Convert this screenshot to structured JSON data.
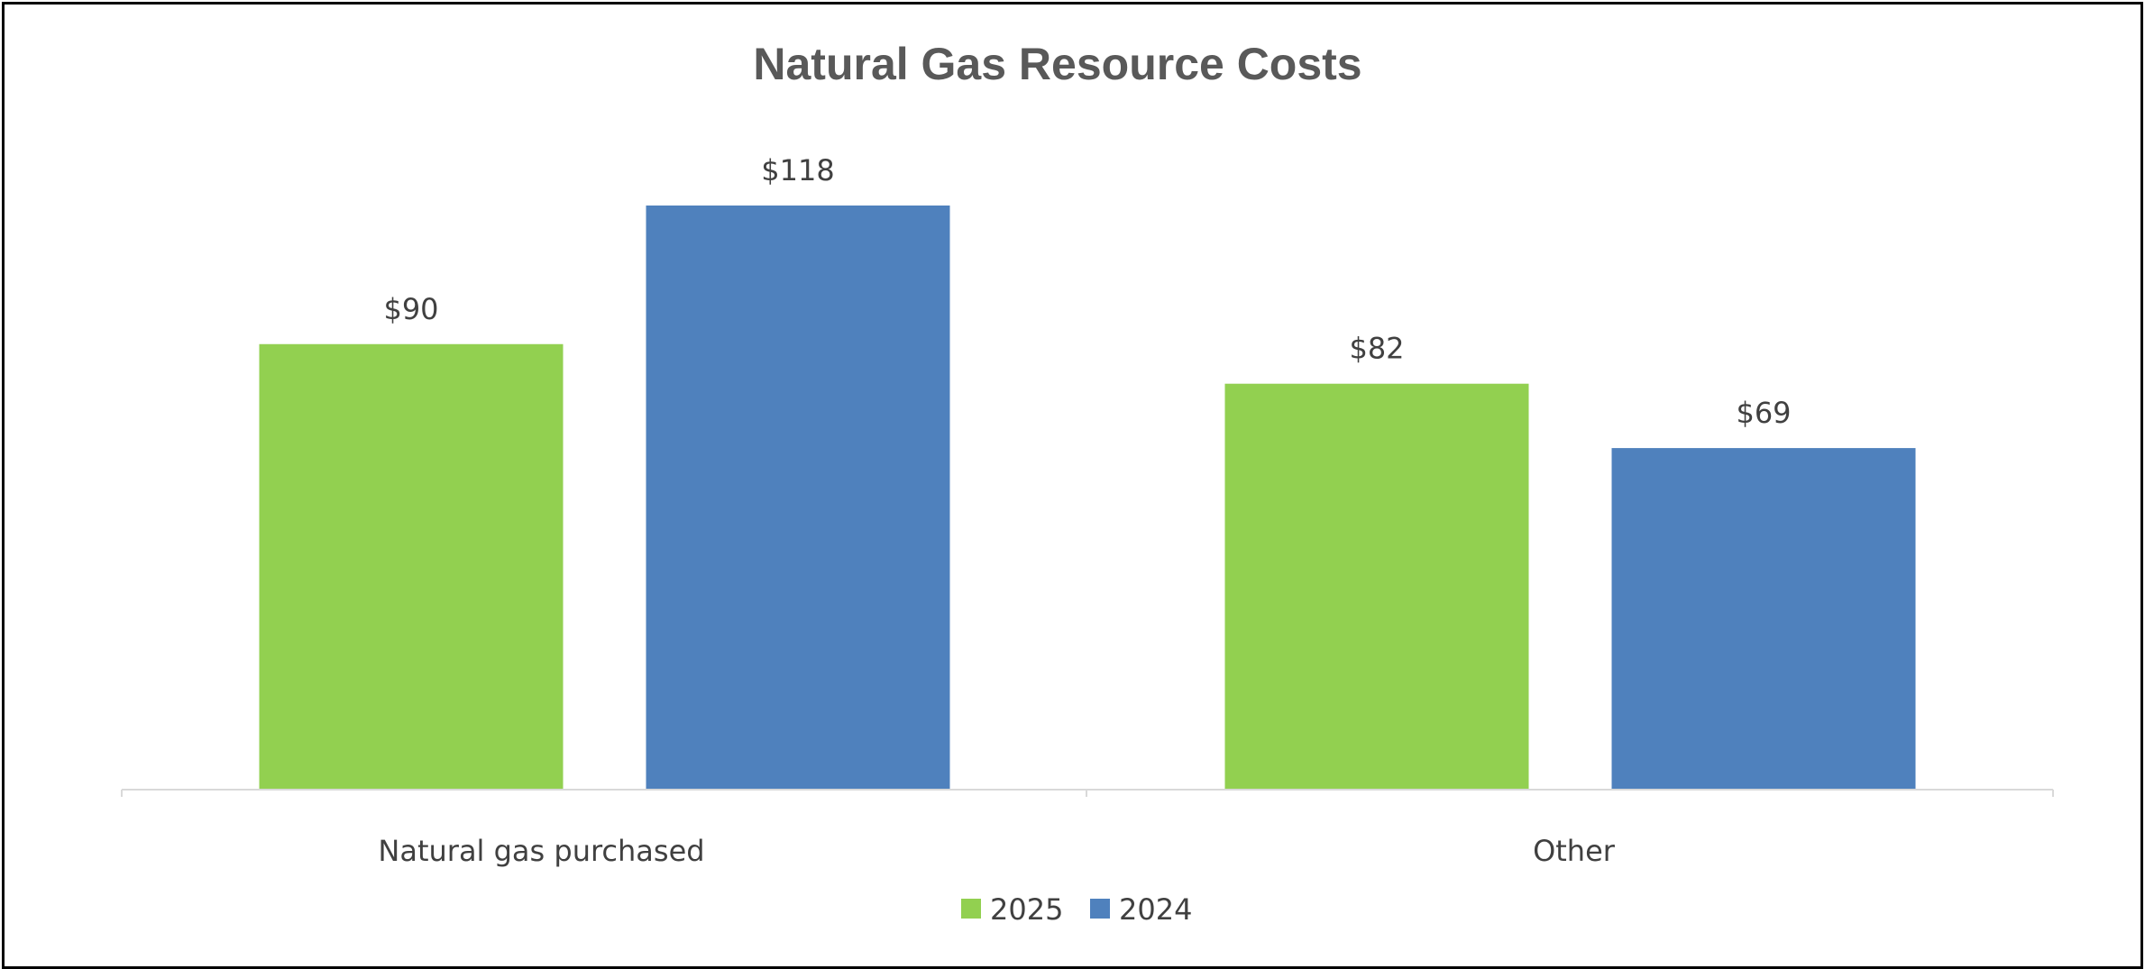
{
  "chart_data": {
    "type": "bar",
    "title": "Natural Gas Resource Costs",
    "categories": [
      "Natural gas purchased",
      "Other"
    ],
    "series": [
      {
        "name": "2025",
        "color": "#92D050",
        "values": [
          90,
          82
        ],
        "labels": [
          "$90",
          "$82"
        ]
      },
      {
        "name": "2024",
        "color": "#4F81BD",
        "values": [
          118,
          69
        ],
        "labels": [
          "$118",
          "$69"
        ]
      }
    ],
    "ylim": [
      0,
      118
    ],
    "grid": false,
    "legend": "bottom"
  }
}
